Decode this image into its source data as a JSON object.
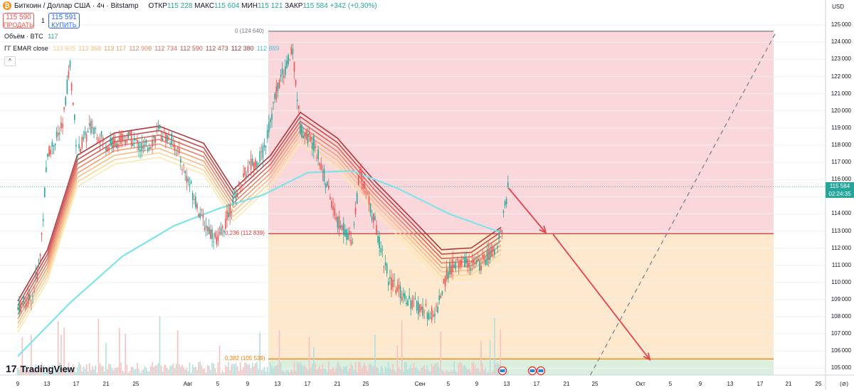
{
  "header": {
    "title": "Биткоин / Доллар США · 4ч · Bitstamp",
    "open_label": "ОТКР",
    "open": "115 228",
    "high_label": "МАКС",
    "high": "115 604",
    "low_label": "МИН",
    "low": "115 121",
    "close_label": "ЗАКР",
    "close": "115 584",
    "change": "+342 (+0,30%)",
    "coin_icon": "bitcoin-icon"
  },
  "trade": {
    "sell_price": "115 590",
    "sell_label": "ПРОДАТЬ",
    "spread": "1",
    "buy_price": "115 591",
    "buy_label": "КУПИТЬ"
  },
  "indicators": {
    "volume_label": "Объём · BTC",
    "volume_value": "117",
    "ema_label": "ГГ EMAR close",
    "ema_values": [
      "113 605",
      "113 368",
      "113 117",
      "112 908",
      "112 734",
      "112 590",
      "112 473",
      "112 380",
      "112 889"
    ]
  },
  "logo": "TradingView",
  "price_axis": {
    "currency": "USD",
    "current_price": "115 584",
    "countdown": "02:24:35",
    "log_label": "(⊘)"
  },
  "colors": {
    "up": "#26a69a",
    "down": "#ef5350",
    "zone_upper": "#f8c9cf",
    "zone_middle": "#fde2bd",
    "zone_lower": "#cfe9d4",
    "ema200": "#7fe3ea",
    "arrow": "#e8424a"
  },
  "chart_data": {
    "type": "candlestick",
    "x_ticks": [
      "9",
      "13",
      "17",
      "21",
      "25",
      "Авг",
      "5",
      "9",
      "13",
      "17",
      "21",
      "25",
      "Сен",
      "5",
      "9",
      "13",
      "17",
      "21",
      "25",
      "Окт",
      "5",
      "9",
      "13",
      "17",
      "21",
      "25"
    ],
    "y_ticks": [
      105000,
      106000,
      107000,
      108000,
      109000,
      110000,
      111000,
      112000,
      113000,
      114000,
      115000,
      116000,
      117000,
      118000,
      119000,
      120000,
      121000,
      122000,
      123000,
      124000,
      125000
    ],
    "ylim": [
      104600,
      125300
    ],
    "current_price": 115584,
    "fib_levels": [
      {
        "label": "0 (124 640)",
        "value": 124640
      },
      {
        "label": "0,236 (112 839)",
        "value": 112839
      },
      {
        "label": "0,382 (105 539)",
        "value": 105539
      }
    ],
    "price_path": [
      {
        "x": "Jul 7",
        "y": 108500
      },
      {
        "x": "Jul 9",
        "y": 109200
      },
      {
        "x": "Jul 10",
        "y": 111500
      },
      {
        "x": "Jul 11",
        "y": 117500
      },
      {
        "x": "Jul 13",
        "y": 119000
      },
      {
        "x": "Jul 14",
        "y": 122800
      },
      {
        "x": "Jul 15",
        "y": 117500
      },
      {
        "x": "Jul 17",
        "y": 119200
      },
      {
        "x": "Jul 19",
        "y": 118000
      },
      {
        "x": "Jul 22",
        "y": 118500
      },
      {
        "x": "Jul 24",
        "y": 117700
      },
      {
        "x": "Jul 26",
        "y": 118800
      },
      {
        "x": "Jul 28",
        "y": 118200
      },
      {
        "x": "Aug 1",
        "y": 113500
      },
      {
        "x": "Aug 3",
        "y": 112400
      },
      {
        "x": "Aug 5",
        "y": 114800
      },
      {
        "x": "Aug 7",
        "y": 116700
      },
      {
        "x": "Aug 9",
        "y": 117500
      },
      {
        "x": "Aug 11",
        "y": 121500
      },
      {
        "x": "Aug 13",
        "y": 123500
      },
      {
        "x": "Aug 14",
        "y": 119000
      },
      {
        "x": "Aug 16",
        "y": 118000
      },
      {
        "x": "Aug 19",
        "y": 113500
      },
      {
        "x": "Aug 21",
        "y": 112500
      },
      {
        "x": "Aug 22",
        "y": 116500
      },
      {
        "x": "Aug 24",
        "y": 113500
      },
      {
        "x": "Aug 26",
        "y": 110000
      },
      {
        "x": "Aug 29",
        "y": 108800
      },
      {
        "x": "Aug 31",
        "y": 108300
      },
      {
        "x": "Sep 1",
        "y": 108000
      },
      {
        "x": "Sep 3",
        "y": 110800
      },
      {
        "x": "Sep 5",
        "y": 111200
      },
      {
        "x": "Sep 7",
        "y": 111000
      },
      {
        "x": "Sep 9",
        "y": 111800
      },
      {
        "x": "Sep 10",
        "y": 113000
      },
      {
        "x": "Sep 11",
        "y": 115584
      }
    ],
    "ema200_path": [
      {
        "x": "Jul 7",
        "y": 105700
      },
      {
        "x": "Jul 14",
        "y": 108800
      },
      {
        "x": "Jul 21",
        "y": 111500
      },
      {
        "x": "Jul 28",
        "y": 113300
      },
      {
        "x": "Aug 3",
        "y": 114300
      },
      {
        "x": "Aug 9",
        "y": 115100
      },
      {
        "x": "Aug 15",
        "y": 116400
      },
      {
        "x": "Aug 21",
        "y": 116500
      },
      {
        "x": "Aug 27",
        "y": 115500
      },
      {
        "x": "Sep 3",
        "y": 114000
      },
      {
        "x": "Sep 10",
        "y": 112900
      }
    ],
    "ema_ribbon_path": [
      {
        "x": "Jul 7",
        "y": 108000
      },
      {
        "x": "Jul 11",
        "y": 111000
      },
      {
        "x": "Jul 15",
        "y": 116500
      },
      {
        "x": "Jul 20",
        "y": 117800
      },
      {
        "x": "Jul 26",
        "y": 118200
      },
      {
        "x": "Aug 1",
        "y": 117200
      },
      {
        "x": "Aug 5",
        "y": 114500
      },
      {
        "x": "Aug 10",
        "y": 116500
      },
      {
        "x": "Aug 14",
        "y": 119000
      },
      {
        "x": "Aug 19",
        "y": 117500
      },
      {
        "x": "Aug 24",
        "y": 115000
      },
      {
        "x": "Aug 29",
        "y": 112800
      },
      {
        "x": "Sep 2",
        "y": 111000
      },
      {
        "x": "Sep 6",
        "y": 111100
      },
      {
        "x": "Sep 10",
        "y": 112300
      }
    ],
    "projection_arrows": [
      {
        "from": {
          "x": "Sep 11",
          "y": 115500
        },
        "to": {
          "x": "Sep 16",
          "y": 112900
        }
      },
      {
        "from": {
          "x": "Sep 17",
          "y": 112800
        },
        "to": {
          "x": "Sep 30",
          "y": 105500
        }
      }
    ],
    "trend_line": {
      "from": {
        "x": "Sep 22",
        "y": 104600
      },
      "to": {
        "x": "Oct 17",
        "y": 124600
      }
    }
  }
}
